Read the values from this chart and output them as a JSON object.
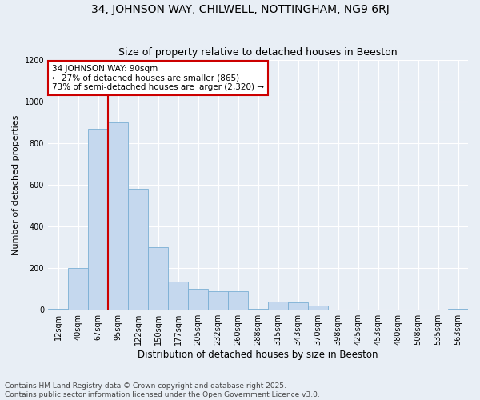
{
  "title1": "34, JOHNSON WAY, CHILWELL, NOTTINGHAM, NG9 6RJ",
  "title2": "Size of property relative to detached houses in Beeston",
  "xlabel": "Distribution of detached houses by size in Beeston",
  "ylabel": "Number of detached properties",
  "categories": [
    "12sqm",
    "40sqm",
    "67sqm",
    "95sqm",
    "122sqm",
    "150sqm",
    "177sqm",
    "205sqm",
    "232sqm",
    "260sqm",
    "288sqm",
    "315sqm",
    "343sqm",
    "370sqm",
    "398sqm",
    "425sqm",
    "453sqm",
    "480sqm",
    "508sqm",
    "535sqm",
    "563sqm"
  ],
  "values": [
    5,
    200,
    870,
    900,
    580,
    300,
    135,
    100,
    90,
    90,
    5,
    40,
    35,
    20,
    0,
    0,
    0,
    0,
    0,
    0,
    5
  ],
  "bar_color": "#c5d8ee",
  "bar_edge_color": "#7aafd4",
  "vline_x_idx": 3,
  "vline_color": "#cc0000",
  "annotation_line1": "34 JOHNSON WAY: 90sqm",
  "annotation_line2": "← 27% of detached houses are smaller (865)",
  "annotation_line3": "73% of semi-detached houses are larger (2,320) →",
  "annotation_box_color": "white",
  "annotation_box_edge": "#cc0000",
  "ylim": [
    0,
    1200
  ],
  "yticks": [
    0,
    200,
    400,
    600,
    800,
    1000,
    1200
  ],
  "background_color": "#e8eef5",
  "footnote": "Contains HM Land Registry data © Crown copyright and database right 2025.\nContains public sector information licensed under the Open Government Licence v3.0.",
  "title1_fontsize": 10,
  "title2_fontsize": 9,
  "xlabel_fontsize": 8.5,
  "ylabel_fontsize": 8,
  "tick_fontsize": 7,
  "footnote_fontsize": 6.5,
  "annot_fontsize": 7.5
}
